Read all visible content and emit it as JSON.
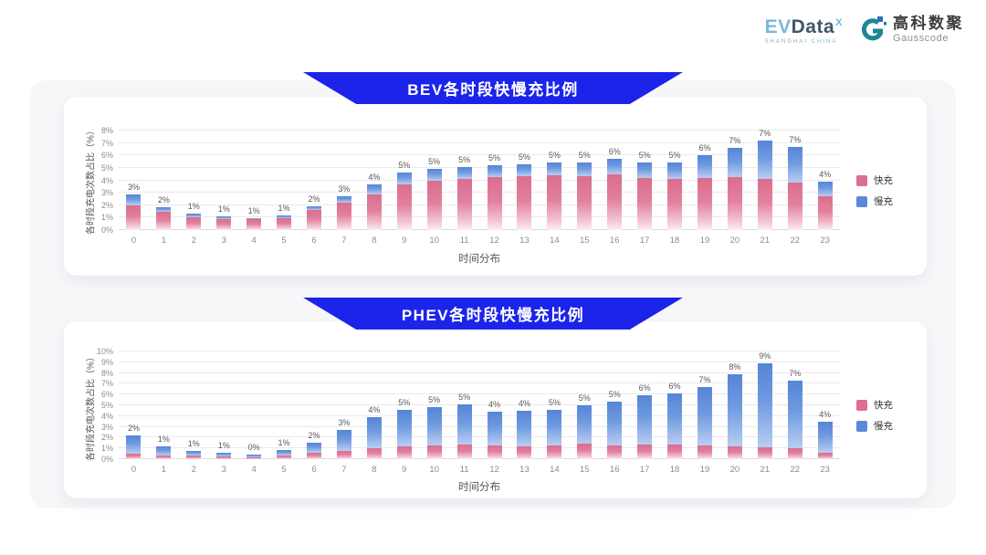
{
  "logo": {
    "evdata": {
      "part1": "EV",
      "part2": "Data",
      "sup": "X",
      "sub1": "SHANGHAI",
      "sub2": "CHINA"
    },
    "gausscode": {
      "cn": "高科数聚",
      "en": "Gausscode"
    }
  },
  "colors": {
    "banner_blue": "#1c24ea",
    "fast_pink": "#dd6e8d",
    "slow_blue": "#5c88d9",
    "gridline": "#eaeaec",
    "tick_text": "#8c8c8c",
    "value_label": "#595959"
  },
  "chart_data": [
    {
      "type": "bar",
      "stacked": true,
      "title": "BEV各时段快慢充比例",
      "xlabel": "时间分布",
      "ylabel": "各时段充电次数占比（%）",
      "ylim": [
        0,
        8
      ],
      "ytick_step": 1,
      "ytick_suffix": "%",
      "grid": true,
      "legend_position": "right",
      "categories": [
        "0",
        "1",
        "2",
        "3",
        "4",
        "5",
        "6",
        "7",
        "8",
        "9",
        "10",
        "11",
        "12",
        "13",
        "14",
        "15",
        "16",
        "17",
        "18",
        "19",
        "20",
        "21",
        "22",
        "23"
      ],
      "series": [
        {
          "name": "快充",
          "color": "#dd6e8d",
          "values": [
            2.0,
            1.45,
            1.05,
            0.9,
            0.85,
            0.95,
            1.6,
            2.2,
            2.85,
            3.7,
            4.0,
            4.1,
            4.25,
            4.3,
            4.4,
            4.35,
            4.5,
            4.15,
            4.1,
            4.2,
            4.25,
            4.1,
            3.8,
            2.7
          ]
        },
        {
          "name": "慢充",
          "color": "#5c88d9",
          "values": [
            0.9,
            0.4,
            0.25,
            0.2,
            0.1,
            0.2,
            0.3,
            0.5,
            0.8,
            0.9,
            0.95,
            0.95,
            0.95,
            1.0,
            1.05,
            1.1,
            1.2,
            1.3,
            1.35,
            1.8,
            2.35,
            3.1,
            2.9,
            1.2
          ]
        }
      ],
      "total_labels": [
        "3%",
        "2%",
        "1%",
        "1%",
        "1%",
        "1%",
        "2%",
        "3%",
        "4%",
        "5%",
        "5%",
        "5%",
        "5%",
        "5%",
        "5%",
        "5%",
        "6%",
        "5%",
        "5%",
        "6%",
        "7%",
        "7%",
        "7%",
        "4%"
      ]
    },
    {
      "type": "bar",
      "stacked": true,
      "title": "PHEV各时段快慢充比例",
      "xlabel": "时间分布",
      "ylabel": "各时段充电次数占比（%）",
      "ylim": [
        0,
        10
      ],
      "ytick_step": 1,
      "ytick_suffix": "%",
      "grid": true,
      "legend_position": "right",
      "categories": [
        "0",
        "1",
        "2",
        "3",
        "4",
        "5",
        "6",
        "7",
        "8",
        "9",
        "10",
        "11",
        "12",
        "13",
        "14",
        "15",
        "16",
        "17",
        "18",
        "19",
        "20",
        "21",
        "22",
        "23"
      ],
      "series": [
        {
          "name": "快充",
          "color": "#dd6e8d",
          "values": [
            0.5,
            0.35,
            0.3,
            0.25,
            0.2,
            0.3,
            0.6,
            0.75,
            1.0,
            1.2,
            1.25,
            1.35,
            1.25,
            1.2,
            1.25,
            1.4,
            1.3,
            1.35,
            1.35,
            1.3,
            1.2,
            1.1,
            1.0,
            0.6
          ]
        },
        {
          "name": "慢充",
          "color": "#5c88d9",
          "values": [
            1.7,
            0.85,
            0.5,
            0.35,
            0.25,
            0.55,
            0.9,
            2.0,
            2.9,
            3.4,
            3.6,
            3.75,
            3.15,
            3.3,
            3.35,
            3.6,
            4.0,
            4.55,
            4.75,
            5.4,
            6.7,
            7.8,
            6.3,
            2.9
          ]
        }
      ],
      "total_labels": [
        "2%",
        "1%",
        "1%",
        "1%",
        "0%",
        "1%",
        "2%",
        "3%",
        "4%",
        "5%",
        "5%",
        "5%",
        "4%",
        "4%",
        "5%",
        "5%",
        "5%",
        "6%",
        "6%",
        "7%",
        "8%",
        "9%",
        "7%",
        "4%"
      ]
    }
  ]
}
